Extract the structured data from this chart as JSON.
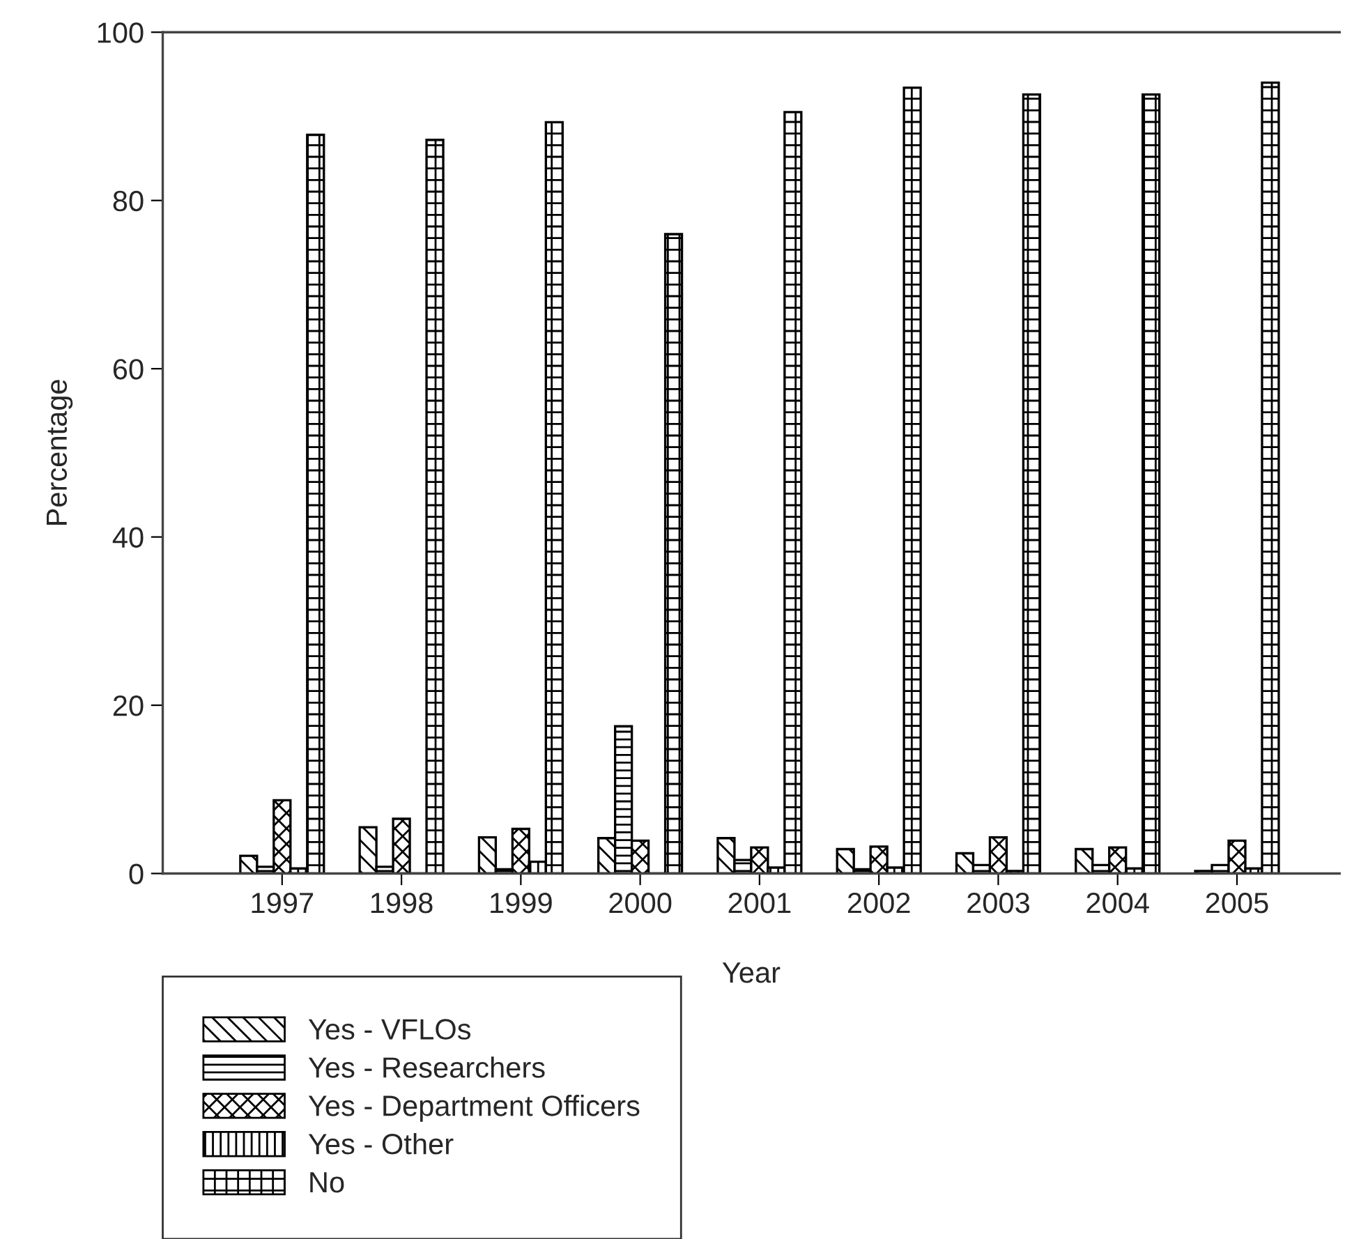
{
  "chart_data": {
    "type": "bar",
    "xlabel": "Year",
    "ylabel": "Percentage",
    "categories": [
      "1997",
      "1998",
      "1999",
      "2000",
      "2001",
      "2002",
      "2003",
      "2004",
      "2005"
    ],
    "series": [
      {
        "name": "Yes - VFLOs",
        "color": "#000000",
        "values": [
          2.1,
          5.5,
          4.3,
          4.2,
          4.2,
          2.9,
          2.4,
          2.9,
          0.3
        ]
      },
      {
        "name": "Yes - Researchers",
        "color": "#000000",
        "values": [
          0.8,
          0.8,
          0.5,
          17.5,
          1.6,
          0.5,
          1.0,
          1.0,
          1.0
        ]
      },
      {
        "name": "Yes - Department Officers",
        "color": "#000000",
        "values": [
          8.7,
          6.5,
          5.3,
          3.9,
          3.1,
          3.2,
          4.3,
          3.1,
          3.9
        ]
      },
      {
        "name": "Yes - Other",
        "color": "#000000",
        "values": [
          0.6,
          0,
          1.4,
          0,
          0.7,
          0.7,
          0.3,
          0.6,
          0.6
        ]
      },
      {
        "name": "No",
        "color": "#000000",
        "values": [
          87.8,
          87.2,
          89.3,
          76.0,
          90.5,
          93.4,
          92.6,
          92.6,
          94.0
        ]
      }
    ],
    "ylim": [
      0,
      100
    ],
    "yticks": [
      0,
      20,
      40,
      60,
      80,
      100
    ],
    "grid": false,
    "legend": "bottom left"
  }
}
